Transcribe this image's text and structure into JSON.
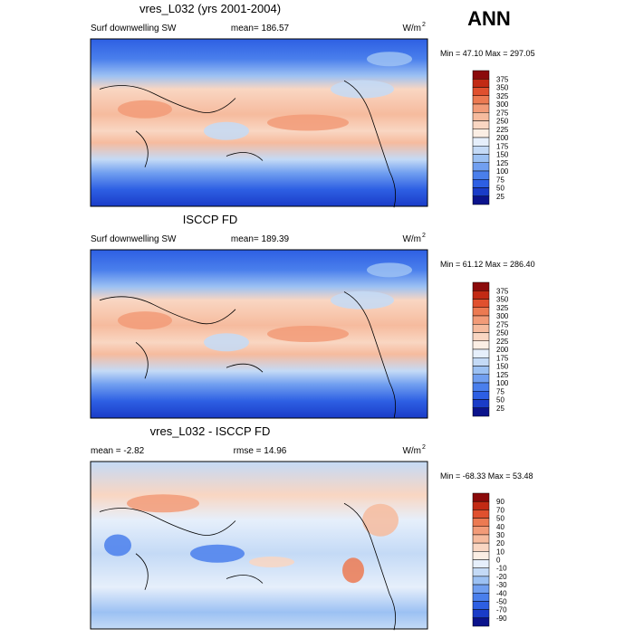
{
  "header": {
    "title": "ANN"
  },
  "panels": [
    {
      "title": "vres_L032 (yrs 2001-2004)",
      "left_label": "Surf downwelling SW",
      "center_label": "mean= 186.57",
      "units": {
        "base": "W/m",
        "sup": "2"
      },
      "min_max": "Min =  47.10 Max = 297.05",
      "colorbar": {
        "levels": [
          375,
          350,
          325,
          300,
          275,
          250,
          225,
          200,
          175,
          150,
          125,
          100,
          75,
          50,
          25
        ],
        "colors": [
          "#8b0a0a",
          "#c22a14",
          "#e0502e",
          "#ec7a52",
          "#f29b78",
          "#f6bb9e",
          "#f9d6c2",
          "#fbeee4",
          "#e6effb",
          "#c4daf6",
          "#9cc1f3",
          "#719ff0",
          "#4a7fec",
          "#2d5fe3",
          "#1a3cc8",
          "#0b138c"
        ]
      }
    },
    {
      "title": "ISCCP FD",
      "left_label": "Surf downwelling SW",
      "center_label": "mean= 189.39",
      "units": {
        "base": "W/m",
        "sup": "2"
      },
      "min_max": "Min =  61.12 Max = 286.40",
      "colorbar": {
        "levels": [
          375,
          350,
          325,
          300,
          275,
          250,
          225,
          200,
          175,
          150,
          125,
          100,
          75,
          50,
          25
        ],
        "colors": [
          "#8b0a0a",
          "#c22a14",
          "#e0502e",
          "#ec7a52",
          "#f29b78",
          "#f6bb9e",
          "#f9d6c2",
          "#fbeee4",
          "#e6effb",
          "#c4daf6",
          "#9cc1f3",
          "#719ff0",
          "#4a7fec",
          "#2d5fe3",
          "#1a3cc8",
          "#0b138c"
        ]
      }
    },
    {
      "title": "vres_L032 - ISCCP FD",
      "left_label": "mean = -2.82",
      "center_label": "rmse = 14.96",
      "units": {
        "base": "W/m",
        "sup": "2"
      },
      "min_max": "Min = -68.33 Max =  53.48",
      "colorbar": {
        "levels": [
          90,
          70,
          50,
          40,
          30,
          20,
          10,
          0,
          -10,
          -20,
          -30,
          -40,
          -50,
          -70,
          -90
        ],
        "colors": [
          "#8b0a0a",
          "#c22a14",
          "#e0502e",
          "#ec7a52",
          "#f29b78",
          "#f6bb9e",
          "#f9d6c2",
          "#fbeee4",
          "#e6effb",
          "#c4daf6",
          "#9cc1f3",
          "#719ff0",
          "#4a7fec",
          "#2d5fe3",
          "#1a3cc8",
          "#0b138c"
        ]
      }
    }
  ]
}
